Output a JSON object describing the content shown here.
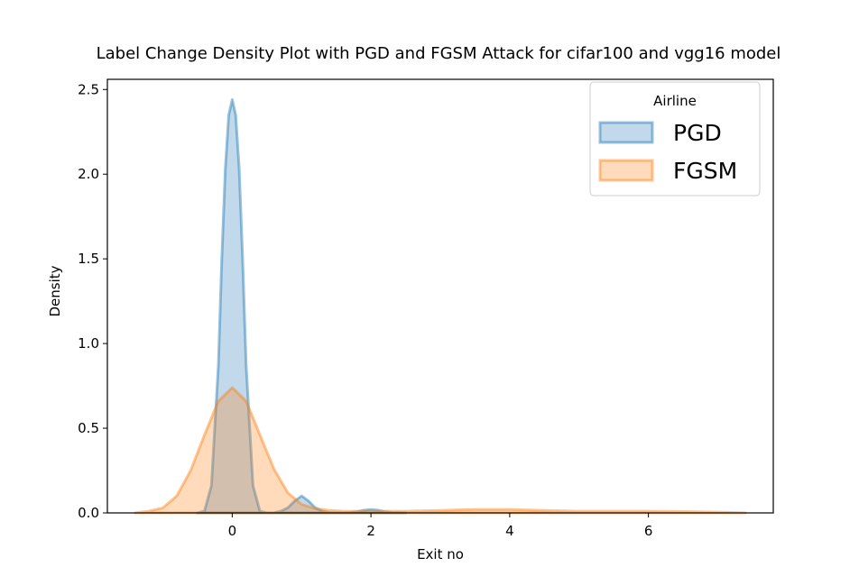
{
  "chart_data": {
    "type": "area",
    "title": "Label Change Density Plot with PGD and FGSM Attack for cifar100 and  vgg16 model",
    "xlabel": "Exit no",
    "ylabel": "Density",
    "xlim": [
      -1.8,
      7.8
    ],
    "ylim": [
      0,
      2.56
    ],
    "xticks": [
      "0",
      "2",
      "4",
      "6"
    ],
    "xtick_values": [
      0,
      2,
      4,
      6
    ],
    "yticks": [
      "0.0",
      "0.5",
      "1.0",
      "1.5",
      "2.0",
      "2.5"
    ],
    "ytick_values": [
      0,
      0.5,
      1.0,
      1.5,
      2.0,
      2.5
    ],
    "grid": false,
    "legend": {
      "title": "Airline",
      "position": "top-right"
    },
    "series": [
      {
        "name": "PGD",
        "color": "#1f77b4",
        "x": [
          -0.5,
          -0.4,
          -0.3,
          -0.2,
          -0.15,
          -0.1,
          -0.05,
          0,
          0.05,
          0.1,
          0.15,
          0.2,
          0.3,
          0.4,
          0.5,
          0.6,
          0.7,
          0.8,
          0.9,
          1.0,
          1.1,
          1.2,
          1.3,
          1.4,
          1.5,
          1.6,
          1.7,
          1.8,
          1.9,
          2.0,
          2.1,
          2.2,
          2.3,
          2.5
        ],
        "y": [
          0.0,
          0.01,
          0.16,
          0.87,
          1.5,
          2.03,
          2.35,
          2.44,
          2.35,
          2.03,
          1.5,
          0.87,
          0.16,
          0.01,
          0.0,
          0.0,
          0.01,
          0.03,
          0.07,
          0.1,
          0.07,
          0.03,
          0.01,
          0.0,
          0.0,
          0.0,
          0.002,
          0.007,
          0.016,
          0.02,
          0.016,
          0.007,
          0.002,
          0.0
        ]
      },
      {
        "name": "FGSM",
        "color": "#ff7f0e",
        "x": [
          -1.4,
          -1.2,
          -1.0,
          -0.8,
          -0.6,
          -0.4,
          -0.2,
          0,
          0.2,
          0.4,
          0.6,
          0.8,
          1.0,
          1.2,
          1.4,
          1.6,
          1.8,
          2.0,
          2.5,
          3.0,
          3.5,
          4.0,
          4.5,
          5.0,
          5.5,
          6.0,
          6.5,
          7.0,
          7.4
        ],
        "y": [
          0.0,
          0.01,
          0.03,
          0.1,
          0.25,
          0.46,
          0.66,
          0.74,
          0.66,
          0.46,
          0.26,
          0.12,
          0.05,
          0.025,
          0.015,
          0.01,
          0.01,
          0.01,
          0.01,
          0.015,
          0.02,
          0.02,
          0.015,
          0.01,
          0.01,
          0.01,
          0.008,
          0.005,
          0.0
        ]
      }
    ]
  }
}
